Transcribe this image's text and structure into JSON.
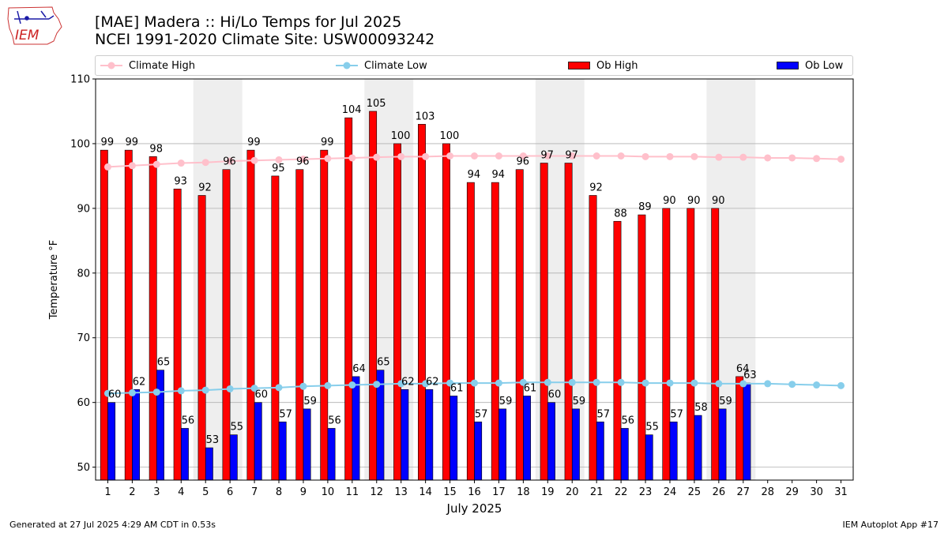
{
  "title": {
    "line1": "[MAE] Madera :: Hi/Lo Temps for Jul 2025",
    "line2": "NCEI 1991-2020 Climate Site: USW00093242"
  },
  "logo_text": "IEM",
  "legend": {
    "climate_high": "Climate High",
    "climate_low": "Climate Low",
    "ob_high": "Ob High",
    "ob_low": "Ob Low"
  },
  "footer": {
    "left": "Generated at 27 Jul 2025 4:29 AM CDT in 0.53s",
    "right": "IEM Autoplot App #17"
  },
  "colors": {
    "ob_high": "#ff0000",
    "ob_low": "#0000ff",
    "climate_high": "#ffc0cb",
    "climate_low": "#87ceeb",
    "weekend_shade": "#eeeeee",
    "grid": "#b0b0b0"
  },
  "chart_data": {
    "type": "bar",
    "xlabel": "July 2025",
    "ylabel": "Temperature °F",
    "ylim": [
      48,
      110
    ],
    "yticks": [
      50,
      60,
      70,
      80,
      90,
      100,
      110
    ],
    "grid": "horizontal",
    "legend_position": "top",
    "categories": [
      "1",
      "2",
      "3",
      "4",
      "5",
      "6",
      "7",
      "8",
      "9",
      "10",
      "11",
      "12",
      "13",
      "14",
      "15",
      "16",
      "17",
      "18",
      "19",
      "20",
      "21",
      "22",
      "23",
      "24",
      "25",
      "26",
      "27",
      "28",
      "29",
      "30",
      "31"
    ],
    "shaded_day_ranges": [
      [
        5,
        6
      ],
      [
        12,
        13
      ],
      [
        19,
        20
      ],
      [
        26,
        27
      ]
    ],
    "series": [
      {
        "name": "Ob High",
        "kind": "bar",
        "values": [
          99,
          99,
          98,
          93,
          92,
          96,
          99,
          95,
          96,
          99,
          104,
          105,
          100,
          103,
          100,
          94,
          94,
          96,
          97,
          97,
          92,
          88,
          89,
          90,
          90,
          90,
          64,
          null,
          null,
          null,
          null
        ]
      },
      {
        "name": "Ob Low",
        "kind": "bar",
        "values": [
          60,
          62,
          65,
          56,
          53,
          55,
          60,
          57,
          59,
          56,
          64,
          65,
          62,
          62,
          61,
          57,
          59,
          61,
          60,
          59,
          57,
          56,
          55,
          57,
          58,
          59,
          63,
          null,
          null,
          null,
          null
        ]
      },
      {
        "name": "Climate High",
        "kind": "line",
        "values": [
          96.4,
          96.6,
          96.8,
          97.0,
          97.1,
          97.3,
          97.4,
          97.5,
          97.6,
          97.7,
          97.8,
          97.9,
          98.0,
          98.0,
          98.1,
          98.1,
          98.1,
          98.1,
          98.1,
          98.1,
          98.1,
          98.1,
          98.0,
          98.0,
          98.0,
          97.9,
          97.9,
          97.8,
          97.8,
          97.7,
          97.6
        ]
      },
      {
        "name": "Climate Low",
        "kind": "line",
        "values": [
          61.4,
          61.5,
          61.6,
          61.8,
          61.9,
          62.1,
          62.2,
          62.3,
          62.5,
          62.6,
          62.7,
          62.8,
          62.9,
          62.9,
          63.0,
          63.0,
          63.0,
          63.1,
          63.1,
          63.1,
          63.1,
          63.1,
          63.0,
          63.0,
          63.0,
          62.9,
          62.9,
          62.9,
          62.8,
          62.7,
          62.6
        ]
      }
    ]
  }
}
